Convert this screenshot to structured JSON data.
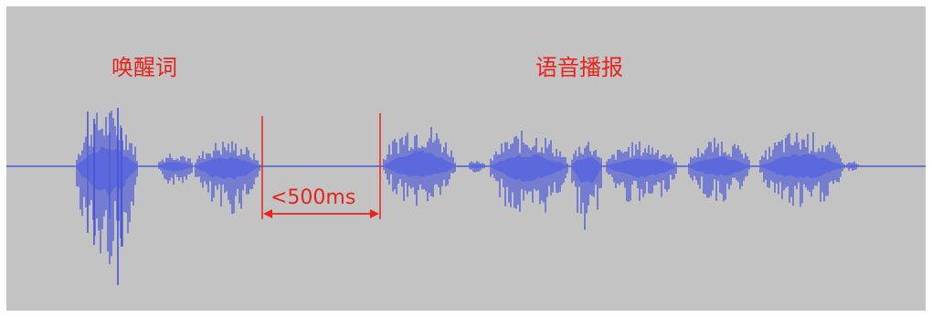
{
  "labels": {
    "wake_word": "唤醒词",
    "voice_broadcast": "语音播报",
    "gap": "<500ms"
  },
  "colors": {
    "background": "#c3c3c3",
    "waveform": "#4a57d6",
    "waveform_light": "#7f8ae6",
    "annotation": "#e8231b"
  }
}
